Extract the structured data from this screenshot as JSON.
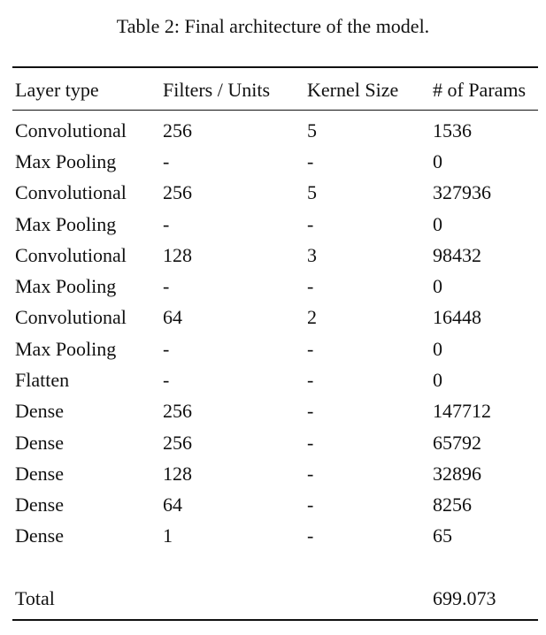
{
  "caption": "Table 2: Final architecture of the model.",
  "headers": [
    "Layer type",
    "Filters / Units",
    "Kernel Size",
    "# of Params"
  ],
  "rows": [
    [
      "Convolutional",
      "256",
      "5",
      "1536"
    ],
    [
      "Max Pooling",
      "-",
      "-",
      "0"
    ],
    [
      "Convolutional",
      "256",
      "5",
      "327936"
    ],
    [
      "Max Pooling",
      "-",
      "-",
      "0"
    ],
    [
      "Convolutional",
      "128",
      "3",
      "98432"
    ],
    [
      "Max Pooling",
      "-",
      "-",
      "0"
    ],
    [
      "Convolutional",
      "64",
      "2",
      "16448"
    ],
    [
      "Max Pooling",
      "-",
      "-",
      "0"
    ],
    [
      "Flatten",
      "-",
      "-",
      "0"
    ],
    [
      "Dense",
      "256",
      "-",
      "147712"
    ],
    [
      "Dense",
      "256",
      "-",
      "65792"
    ],
    [
      "Dense",
      "128",
      "-",
      "32896"
    ],
    [
      "Dense",
      "64",
      "-",
      "8256"
    ],
    [
      "Dense",
      "1",
      "-",
      "65"
    ]
  ],
  "total": {
    "label": "Total",
    "params": "699.073"
  }
}
